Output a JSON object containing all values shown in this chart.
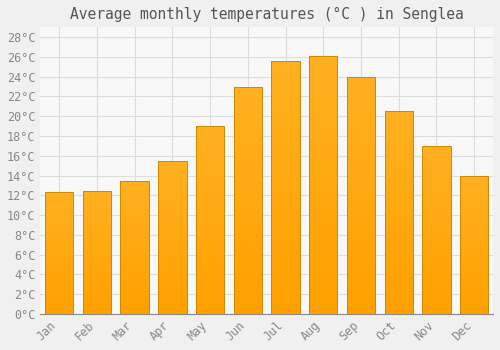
{
  "title": "Average monthly temperatures (°C ) in Senglea",
  "months": [
    "Jan",
    "Feb",
    "Mar",
    "Apr",
    "May",
    "Jun",
    "Jul",
    "Aug",
    "Sep",
    "Oct",
    "Nov",
    "Dec"
  ],
  "values": [
    12.3,
    12.4,
    13.4,
    15.5,
    19.0,
    23.0,
    25.6,
    26.1,
    24.0,
    20.5,
    17.0,
    14.0
  ],
  "bar_color_top": "#FFB020",
  "bar_color_bottom": "#FFA000",
  "bar_edge_color": "#CC8800",
  "background_color": "#F0F0F0",
  "plot_bg_color": "#F8F8F8",
  "grid_color": "#DDDDDD",
  "text_color": "#888888",
  "title_color": "#555555",
  "ylim": [
    0,
    29
  ],
  "ytick_step": 2,
  "title_fontsize": 10.5,
  "tick_fontsize": 8.5,
  "font_family": "monospace"
}
